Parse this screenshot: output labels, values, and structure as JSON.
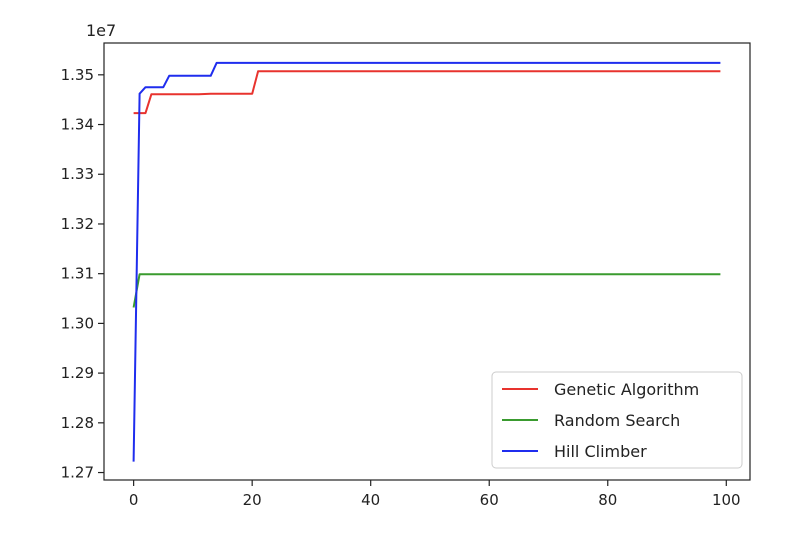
{
  "chart_data": {
    "type": "line",
    "title": "",
    "xlabel": "",
    "ylabel": "",
    "y_offset_label": "1e7",
    "xlim": [
      -5,
      104
    ],
    "ylim": [
      1.2685,
      1.3564
    ],
    "xticks": [
      0,
      20,
      40,
      60,
      80,
      100
    ],
    "xtick_labels": [
      "0",
      "20",
      "40",
      "60",
      "80",
      "100"
    ],
    "yticks": [
      1.27,
      1.28,
      1.29,
      1.3,
      1.31,
      1.32,
      1.33,
      1.34,
      1.35
    ],
    "ytick_labels": [
      "1.27",
      "1.28",
      "1.29",
      "1.30",
      "1.31",
      "1.32",
      "1.33",
      "1.34",
      "1.35"
    ],
    "grid": false,
    "legend_position": "lower-right",
    "series": [
      {
        "name": "Genetic Algorithm",
        "color": "#e8332e",
        "x": [
          0,
          2,
          3,
          11,
          13,
          20,
          21,
          99
        ],
        "y": [
          1.3423,
          1.3423,
          1.3461,
          1.3461,
          1.3462,
          1.3462,
          1.3507,
          1.3507
        ]
      },
      {
        "name": "Random Search",
        "color": "#3a9b2f",
        "x": [
          0,
          1,
          99
        ],
        "y": [
          1.3032,
          1.3099,
          1.3099
        ]
      },
      {
        "name": "Hill Climber",
        "color": "#1f2dee",
        "x": [
          0,
          1,
          2,
          5,
          6,
          13,
          14,
          99
        ],
        "y": [
          1.2722,
          1.3462,
          1.3475,
          1.3475,
          1.3498,
          1.3498,
          1.3524,
          1.3524
        ]
      }
    ]
  }
}
